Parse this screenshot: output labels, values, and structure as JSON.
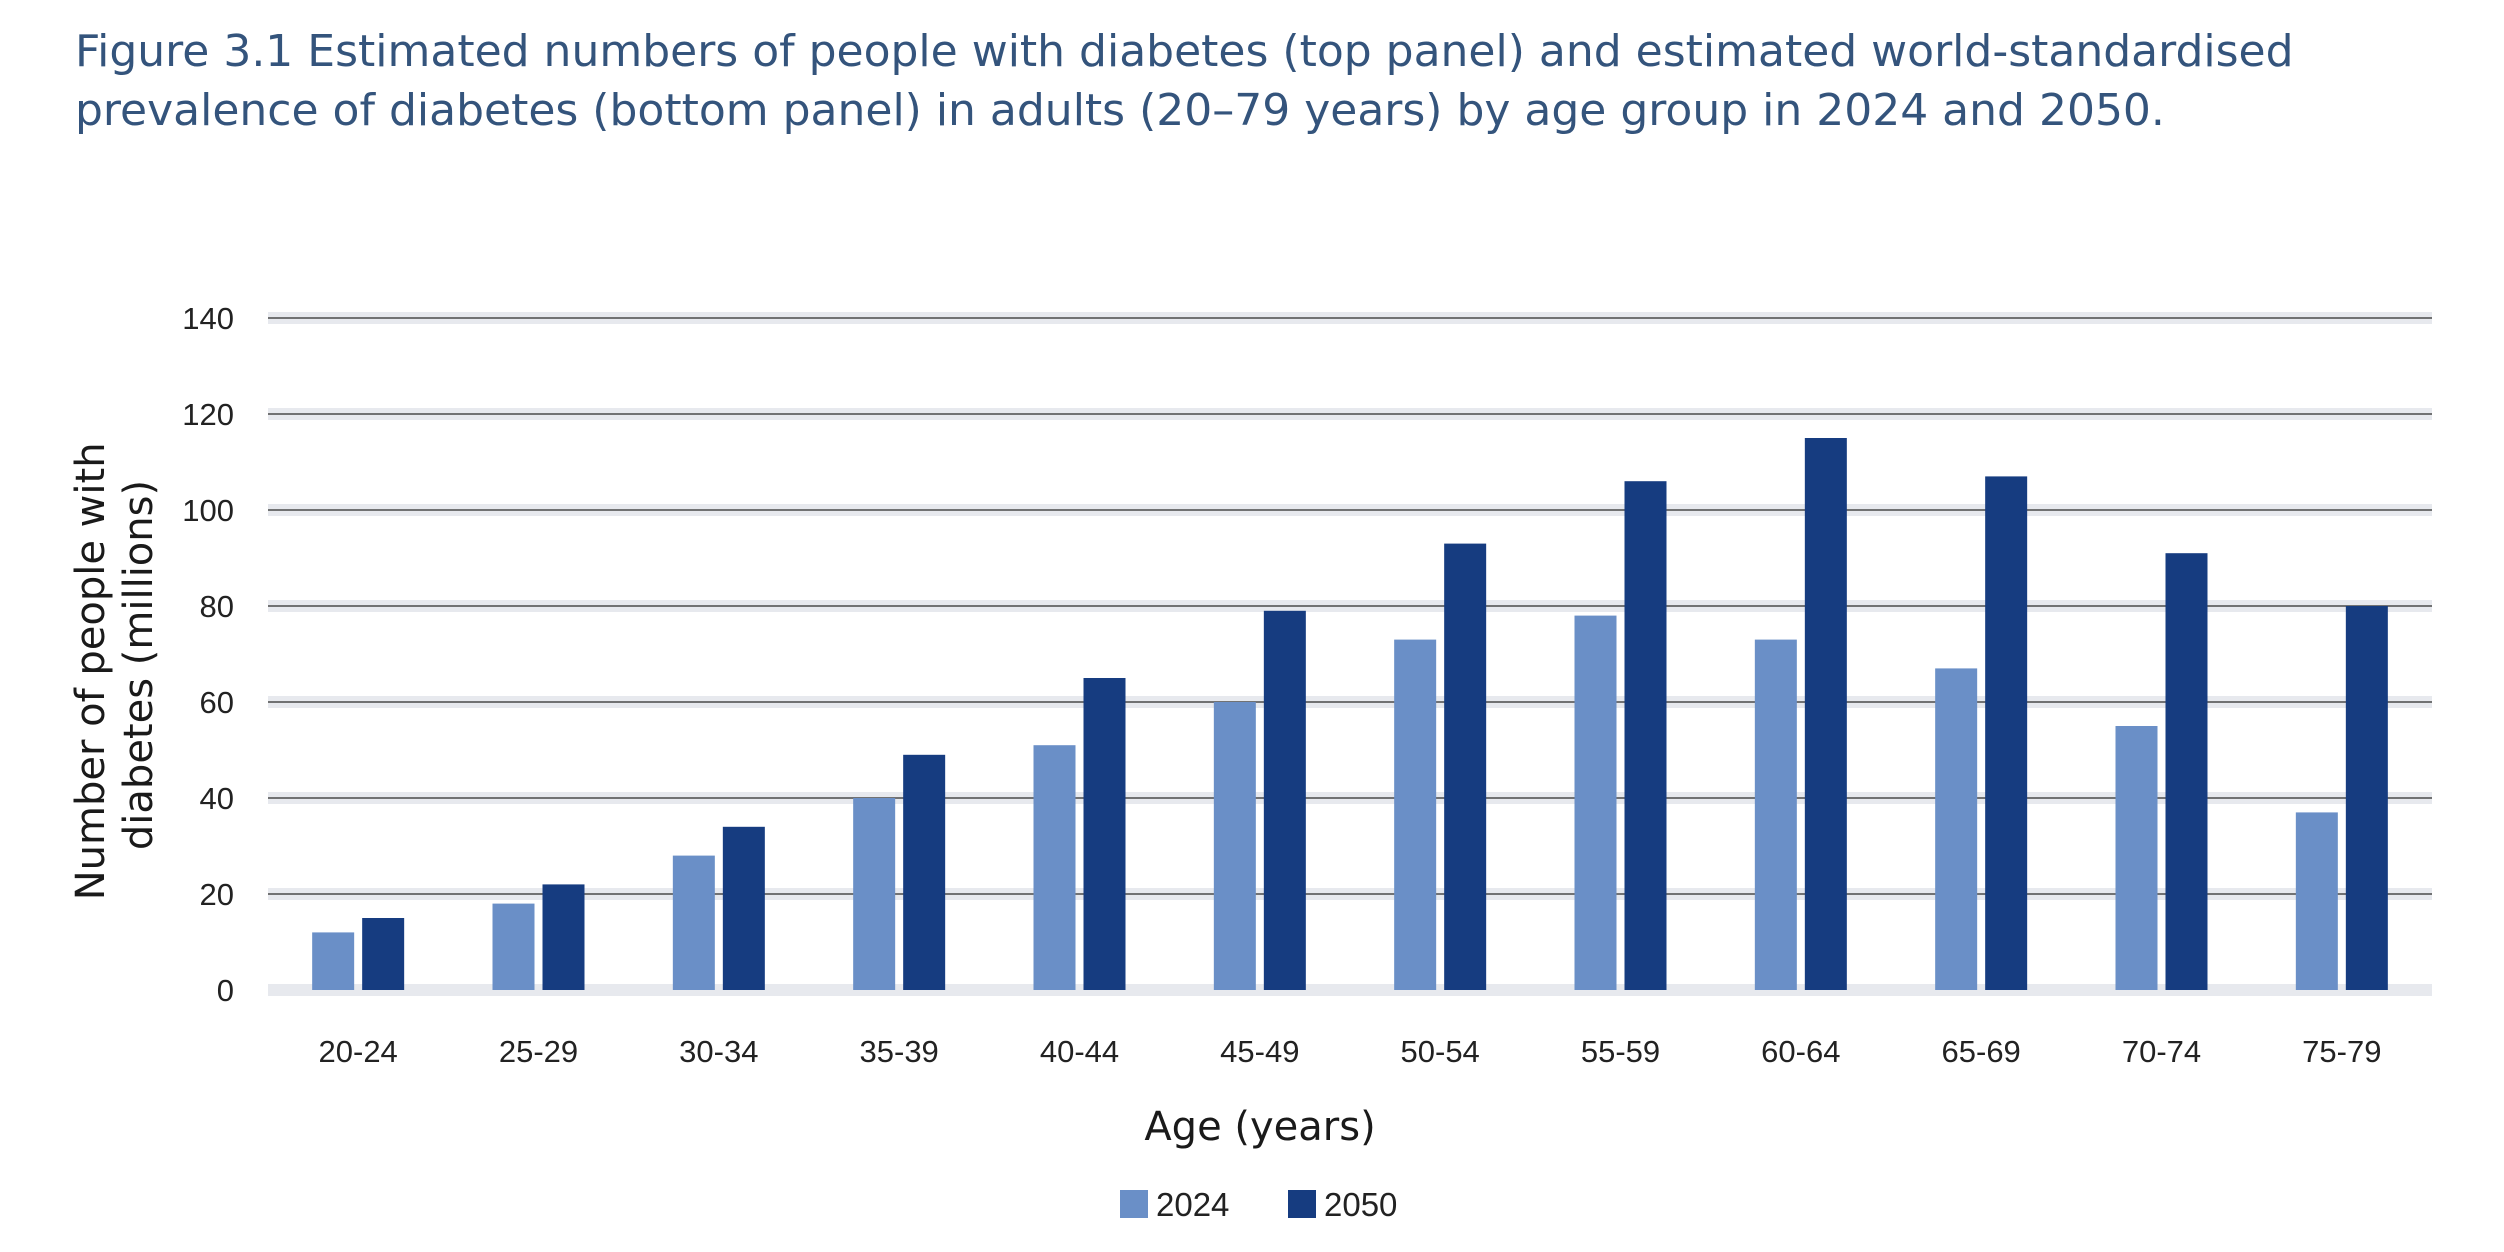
{
  "figure": {
    "caption": "Figure 3.1 Estimated numbers of people with diabetes (top panel) and estimated world-standardised prevalence of diabetes (bottom panel) in adults (20–79 years) by age group in 2024 and 2050."
  },
  "colors": {
    "series_2024": "#6a8fc7",
    "series_2050": "#163c80",
    "gridline": "#4a4a4a",
    "gridband": "#e7e9ee"
  },
  "chart_data": {
    "type": "bar",
    "title": "",
    "xlabel": "Age (years)",
    "ylabel": "Number of people with diabetes (millions)",
    "ylabel_lines": [
      "Number of people with",
      "diabetes (millions)"
    ],
    "ylim": [
      0,
      140
    ],
    "yticks": [
      0,
      20,
      40,
      60,
      80,
      100,
      120,
      140
    ],
    "grid": true,
    "legend": "bottom-center",
    "categories": [
      "20-24",
      "25-29",
      "30-34",
      "35-39",
      "40-44",
      "45-49",
      "50-54",
      "55-59",
      "60-64",
      "65-69",
      "70-74",
      "75-79"
    ],
    "series": [
      {
        "name": "2024",
        "values": [
          12,
          18,
          28,
          40,
          51,
          60,
          73,
          78,
          73,
          67,
          55,
          37
        ]
      },
      {
        "name": "2050",
        "values": [
          15,
          22,
          34,
          49,
          65,
          79,
          93,
          106,
          115,
          107,
          91,
          80
        ]
      }
    ]
  }
}
